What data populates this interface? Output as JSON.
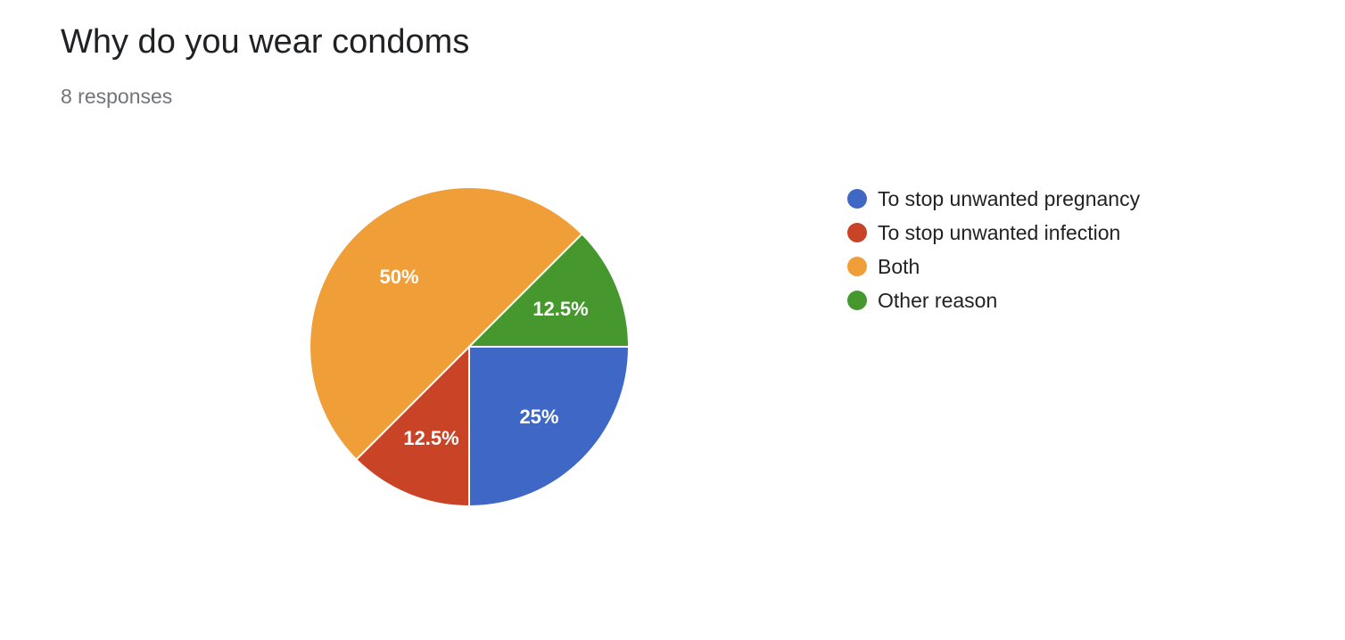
{
  "header": {
    "title": "Why do you wear condoms",
    "subtitle": "8 responses"
  },
  "chart_data": {
    "type": "pie",
    "title": "Why do you wear condoms",
    "subtitle": "8 responses",
    "legend_position": "right",
    "slices": [
      {
        "label": "To stop unwanted pregnancy",
        "value": 25,
        "display": "25%",
        "color": "#3e67c6"
      },
      {
        "label": "To stop unwanted infection",
        "value": 12.5,
        "display": "12.5%",
        "color": "#c94427"
      },
      {
        "label": "Both",
        "value": 50,
        "display": "50%",
        "color": "#f09e38"
      },
      {
        "label": "Other reason",
        "value": 12.5,
        "display": "12.5%",
        "color": "#46972e"
      }
    ]
  }
}
